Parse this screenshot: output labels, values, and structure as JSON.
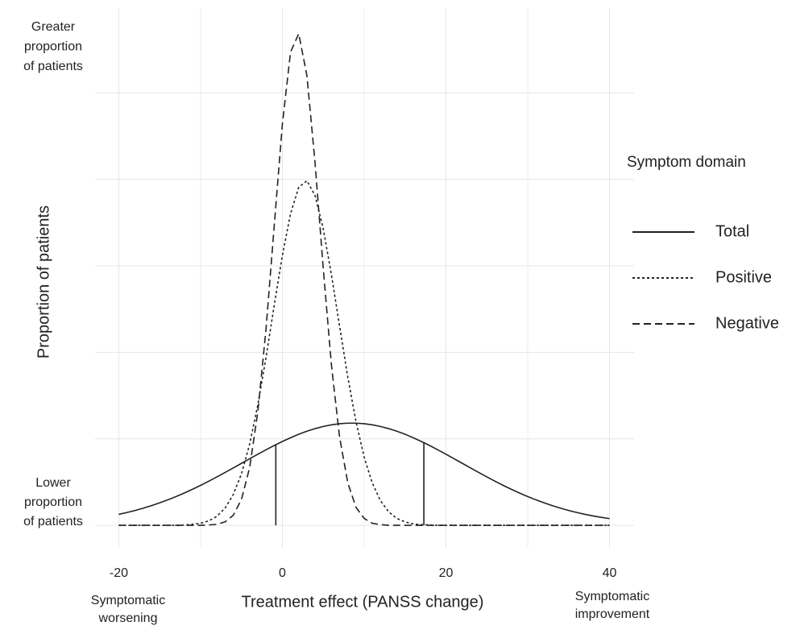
{
  "chart_data": {
    "type": "line",
    "y_label": "Proportion of patients",
    "x_label": "Treatment effect (PANSS change)",
    "y_top_note": [
      "Greater",
      "proportion",
      "of patients"
    ],
    "y_bottom_note": [
      "Lower",
      "proportion",
      "of patients"
    ],
    "x_left_note": [
      "Symptomatic",
      "worsening"
    ],
    "x_right_note": [
      "Symptomatic",
      "improvement"
    ],
    "legend_title": "Symptom domain",
    "x": [
      -20,
      -19,
      -18,
      -17,
      -16,
      -15,
      -14,
      -13,
      -12,
      -11,
      -10,
      -9,
      -8,
      -7,
      -6,
      -5,
      -4,
      -3,
      -2,
      -1,
      0,
      1,
      2,
      3,
      4,
      5,
      6,
      7,
      8,
      9,
      10,
      11,
      12,
      13,
      14,
      15,
      16,
      17,
      18,
      19,
      20,
      21,
      22,
      23,
      24,
      25,
      26,
      27,
      28,
      29,
      30,
      31,
      32,
      33,
      34,
      35,
      36,
      37,
      38,
      39,
      40
    ],
    "series": [
      {
        "name": "Total",
        "color": "#222222",
        "dash": "solid",
        "values": [
          0.00318,
          0.00371,
          0.0043,
          0.00496,
          0.00569,
          0.0065,
          0.00737,
          0.00832,
          0.00933,
          0.01041,
          0.01155,
          0.01276,
          0.014,
          0.01529,
          0.0166,
          0.01792,
          0.01925,
          0.02056,
          0.02184,
          0.02307,
          0.02424,
          0.02532,
          0.02632,
          0.0272,
          0.02795,
          0.02857,
          0.02905,
          0.02937,
          0.02953,
          0.02953,
          0.02937,
          0.02905,
          0.02857,
          0.02795,
          0.0272,
          0.02632,
          0.02532,
          0.02424,
          0.02307,
          0.02184,
          0.02056,
          0.01925,
          0.01792,
          0.0166,
          0.01529,
          0.014,
          0.01276,
          0.01155,
          0.01041,
          0.00933,
          0.00832,
          0.00737,
          0.0065,
          0.00569,
          0.00496,
          0.0043,
          0.00371,
          0.00318,
          0.00271,
          0.0023,
          0.00194
        ]
      },
      {
        "name": "Positive",
        "color": "#222222",
        "dash": "dotted",
        "values": [
          0,
          0,
          0,
          0,
          0,
          0,
          0,
          0,
          0.0001,
          0.0003,
          0.0006,
          0.0013,
          0.0026,
          0.005,
          0.0089,
          0.0149,
          0.0235,
          0.0348,
          0.0485,
          0.0635,
          0.078,
          0.0901,
          0.0977,
          0.0996,
          0.0953,
          0.0857,
          0.0724,
          0.0575,
          0.0428,
          0.03,
          0.0197,
          0.0122,
          0.0071,
          0.0039,
          0.002,
          0.001,
          0.0004,
          0.0002,
          0.0001,
          0,
          0,
          0,
          0,
          0,
          0,
          0,
          0,
          0,
          0,
          0,
          0,
          0,
          0,
          0,
          0,
          0,
          0,
          0,
          0,
          0,
          0
        ]
      },
      {
        "name": "Negative",
        "color": "#222222",
        "dash": "dashed",
        "values": [
          0,
          0,
          0,
          0,
          0,
          0,
          0,
          0,
          0,
          0,
          0,
          0.0001,
          0.0003,
          0.001,
          0.0029,
          0.0075,
          0.0167,
          0.0328,
          0.0567,
          0.0864,
          0.1159,
          0.1368,
          0.1421,
          0.13,
          0.1047,
          0.0742,
          0.0463,
          0.0254,
          0.0123,
          0.0052,
          0.002,
          0.0006,
          0.0002,
          0,
          0,
          0,
          0,
          0,
          0,
          0,
          0,
          0,
          0,
          0,
          0,
          0,
          0,
          0,
          0,
          0,
          0,
          0,
          0,
          0,
          0,
          0,
          0,
          0,
          0,
          0,
          0
        ]
      }
    ],
    "vlines": [
      -0.8,
      17.3
    ],
    "xlim": [
      -22.9,
      43
    ],
    "ylim": [
      -0.0065,
      0.1495
    ],
    "xticks": [
      -20,
      0,
      20,
      40
    ],
    "xminor": [
      -10,
      10,
      30
    ],
    "yticks": [
      0,
      0.025,
      0.05,
      0.075,
      0.1,
      0.125
    ],
    "grid": true
  }
}
